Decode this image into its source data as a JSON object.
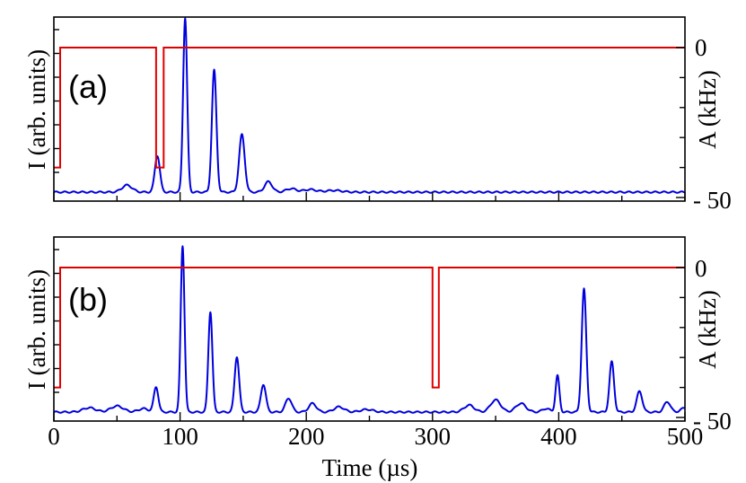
{
  "chart_data": [
    {
      "type": "line",
      "panel": "(a)",
      "xlabel": "",
      "ylabel_left": "I (arb. units)",
      "ylabel_right": "A (kHz)",
      "xlim": [
        0,
        500
      ],
      "ylim_right": [
        -50,
        10
      ],
      "yticks_right": [
        0,
        -50
      ],
      "ytick_labels_right": [
        "0",
        "- 50"
      ],
      "series": [
        {
          "color": "#0000dd",
          "axis": "left",
          "peaks": [
            {
              "x": 58,
              "height": 0.04,
              "width": 4
            },
            {
              "x": 82,
              "height": 0.21,
              "width": 2
            },
            {
              "x": 104,
              "height": 1.0,
              "width": 1.6
            },
            {
              "x": 127,
              "height": 0.7,
              "width": 1.8
            },
            {
              "x": 149,
              "height": 0.33,
              "width": 2.2
            },
            {
              "x": 170,
              "height": 0.06,
              "width": 3
            },
            {
              "x": 188,
              "height": 0.02,
              "width": 4
            },
            {
              "x": 203,
              "height": 0.015,
              "width": 5
            },
            {
              "x": 222,
              "height": 0.01,
              "width": 6
            }
          ]
        },
        {
          "color": "#e00000",
          "axis": "right",
          "points": [
            [
              0,
              -40
            ],
            [
              5,
              -40
            ],
            [
              5,
              0
            ],
            [
              81,
              0
            ],
            [
              81,
              -40
            ],
            [
              87,
              -40
            ],
            [
              87,
              0
            ],
            [
              500,
              0
            ]
          ]
        }
      ]
    },
    {
      "type": "line",
      "panel": "(b)",
      "xlabel": "Time (µs)",
      "ylabel_left": "I (arb. units)",
      "ylabel_right": "A (kHz)",
      "xlim": [
        0,
        500
      ],
      "xticks": [
        0,
        100,
        200,
        300,
        400,
        500
      ],
      "ylim_right": [
        -50,
        10
      ],
      "yticks_right": [
        0,
        -50
      ],
      "ytick_labels_right": [
        "0",
        "- 50"
      ],
      "series": [
        {
          "color": "#0000dd",
          "axis": "left",
          "peaks": [
            {
              "x": 28,
              "height": 0.025,
              "width": 5
            },
            {
              "x": 50,
              "height": 0.035,
              "width": 5
            },
            {
              "x": 71,
              "height": 0.02,
              "width": 4
            },
            {
              "x": 81,
              "height": 0.145,
              "width": 1.8
            },
            {
              "x": 102,
              "height": 0.96,
              "width": 1.5
            },
            {
              "x": 124,
              "height": 0.58,
              "width": 1.6
            },
            {
              "x": 145,
              "height": 0.32,
              "width": 1.8
            },
            {
              "x": 166,
              "height": 0.16,
              "width": 2
            },
            {
              "x": 186,
              "height": 0.08,
              "width": 2.5
            },
            {
              "x": 205,
              "height": 0.05,
              "width": 3
            },
            {
              "x": 226,
              "height": 0.03,
              "width": 4
            },
            {
              "x": 248,
              "height": 0.015,
              "width": 5
            },
            {
              "x": 329,
              "height": 0.04,
              "width": 4
            },
            {
              "x": 350,
              "height": 0.07,
              "width": 4
            },
            {
              "x": 370,
              "height": 0.05,
              "width": 4
            },
            {
              "x": 390,
              "height": 0.02,
              "width": 3
            },
            {
              "x": 399,
              "height": 0.21,
              "width": 1.5
            },
            {
              "x": 420,
              "height": 0.71,
              "width": 1.8
            },
            {
              "x": 442,
              "height": 0.29,
              "width": 1.8
            },
            {
              "x": 464,
              "height": 0.12,
              "width": 2.2
            },
            {
              "x": 486,
              "height": 0.06,
              "width": 2.5
            },
            {
              "x": 500,
              "height": 0.025,
              "width": 3
            }
          ]
        },
        {
          "color": "#e00000",
          "axis": "right",
          "points": [
            [
              0,
              -40
            ],
            [
              5,
              -40
            ],
            [
              5,
              0
            ],
            [
              300,
              0
            ],
            [
              300,
              -40
            ],
            [
              305,
              -40
            ],
            [
              305,
              0
            ],
            [
              500,
              0
            ]
          ]
        }
      ]
    }
  ]
}
